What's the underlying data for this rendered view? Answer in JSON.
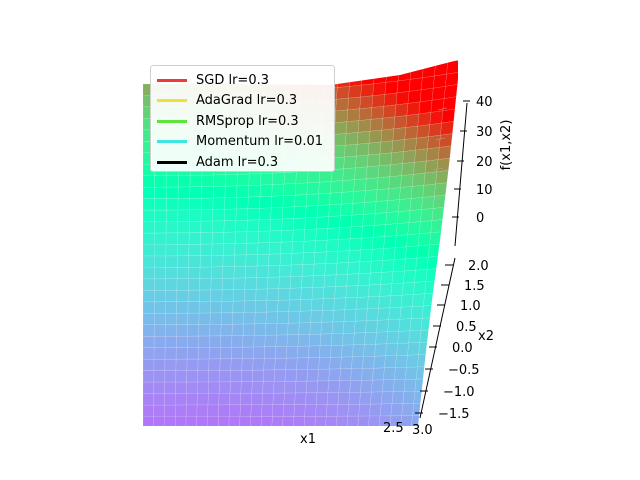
{
  "chart_data": {
    "type": "surface3d",
    "title": "",
    "xlabel": "x1",
    "ylabel": "x2",
    "zlabel": "f(x1,x2)",
    "colormap": "rainbow",
    "z_ticks": [
      "0",
      "10",
      "20",
      "30",
      "40"
    ],
    "y_ticks": [
      "−1.5",
      "−1.0",
      "−0.5",
      "0.0",
      "0.5",
      "1.0",
      "1.5",
      "2.0"
    ],
    "x_ticks": [
      "2.5",
      "3.0"
    ],
    "zlim": [
      -5,
      40
    ],
    "legend_position": "upper-left",
    "series": [
      {
        "name": "SGD lr=0.3",
        "color": "#f03a3a"
      },
      {
        "name": "AdaGrad lr=0.3",
        "color": "#f2de3a"
      },
      {
        "name": "RMSprop lr=0.3",
        "color": "#5ce63a"
      },
      {
        "name": "Momentum lr=0.01",
        "color": "#40e6e6"
      },
      {
        "name": "Adam lr=0.3",
        "color": "#000000"
      }
    ]
  }
}
